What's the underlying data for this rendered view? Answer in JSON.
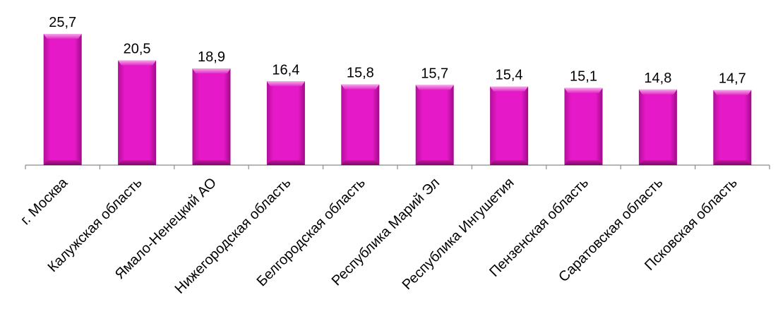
{
  "chart_data": {
    "type": "bar",
    "categories": [
      "г. Москва",
      "Калужская область",
      "Ямало-Ненецкий АО",
      "Нижегородская область",
      "Белгородская область",
      "Республика Марий Эл",
      "Республика Ингушетия",
      "Пензенская область",
      "Саратовская область",
      "Псковская область"
    ],
    "values": [
      25.7,
      20.5,
      18.9,
      16.4,
      15.8,
      15.7,
      15.4,
      15.1,
      14.8,
      14.7
    ],
    "value_labels": [
      "25,7",
      "20,5",
      "18,9",
      "16,4",
      "15,8",
      "15,7",
      "15,4",
      "15,1",
      "14,8",
      "14,7"
    ],
    "title": "",
    "xlabel": "",
    "ylabel": "",
    "ylim": [
      0,
      25.7
    ],
    "grid": false,
    "legend": "none",
    "colors": {
      "bar_face": "#e619c8",
      "bar_light": "#f58fe6",
      "bar_dark": "#8e0a7a",
      "axis": "#8c8c8c"
    }
  }
}
